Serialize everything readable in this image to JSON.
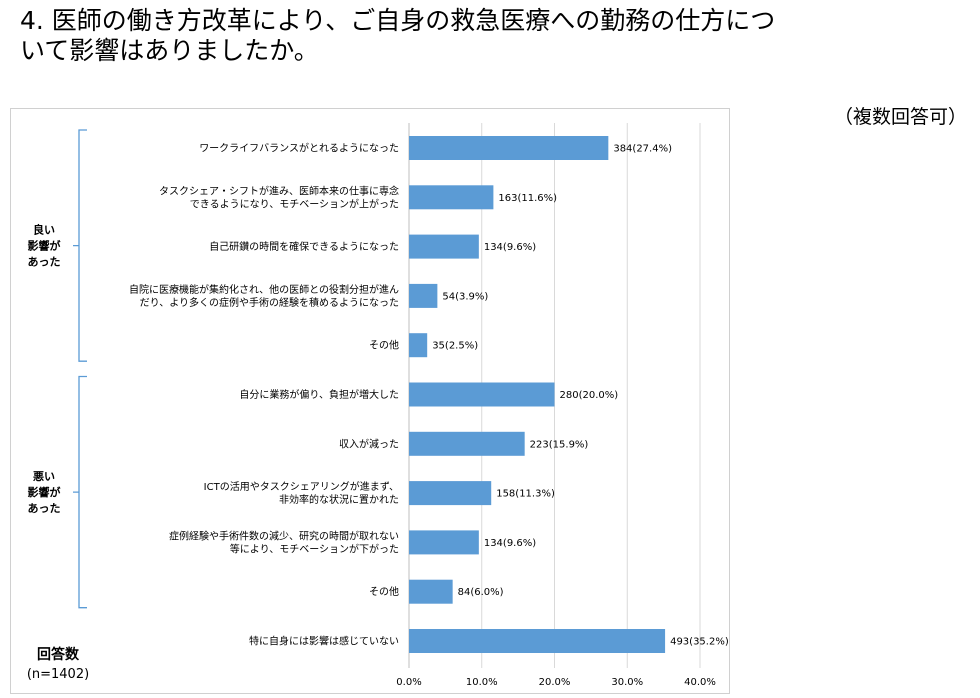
{
  "header": {
    "title": "4. 医師の働き方改革により、ご自身の救急医療への勤務の仕方について影響はありましたか。",
    "note": "（複数回答可）"
  },
  "respondents": {
    "label": "回答数",
    "n": "(n=1402)"
  },
  "colors": {
    "bar": "#5b9bd5",
    "grid": "#d9d9d9",
    "bracket": "#5b9bd5"
  },
  "chart_data": {
    "type": "bar",
    "orientation": "horizontal",
    "xlim": [
      0,
      40
    ],
    "xticks": [
      "0.0%",
      "10.0%",
      "20.0%",
      "30.0%",
      "40.0%"
    ],
    "grid": true,
    "groups": [
      {
        "label": [
          "良い",
          "影響が",
          "あった"
        ],
        "first": 0,
        "last": 4
      },
      {
        "label": [
          "悪い",
          "影響が",
          "あった"
        ],
        "first": 5,
        "last": 9
      }
    ],
    "categories": [
      [
        "ワークライフバランスがとれるようになった"
      ],
      [
        "タスクシェア・シフトが進み、医師本来の仕事に専念",
        "できるようになり、モチベーションが上がった"
      ],
      [
        "自己研鑽の時間を確保できるようになった"
      ],
      [
        "自院に医療機能が集約化され、他の医師との役割分担が進ん",
        "だり、より多くの症例や手術の経験を積めるようになった"
      ],
      [
        "その他"
      ],
      [
        "自分に業務が偏り、負担が増大した"
      ],
      [
        "収入が減った"
      ],
      [
        "ICTの活用やタスクシェアリングが進まず、",
        "非効率的な状況に置かれた"
      ],
      [
        "症例経験や手術件数の減少、研究の時間が取れない",
        "等により、モチベーションが下がった"
      ],
      [
        "その他"
      ],
      [
        "特に自身には影響は感じていない"
      ]
    ],
    "counts": [
      384,
      163,
      134,
      54,
      35,
      280,
      223,
      158,
      134,
      84,
      493
    ],
    "values": [
      27.4,
      11.6,
      9.6,
      3.9,
      2.5,
      20.0,
      15.9,
      11.3,
      9.6,
      6.0,
      35.2
    ],
    "data_labels": [
      "384(27.4%)",
      "163(11.6%)",
      "134(9.6%)",
      "54(3.9%)",
      "35(2.5%)",
      "280(20.0%)",
      "223(15.9%)",
      "158(11.3%)",
      "134(9.6%)",
      "84(6.0%)",
      "493(35.2%)"
    ]
  }
}
